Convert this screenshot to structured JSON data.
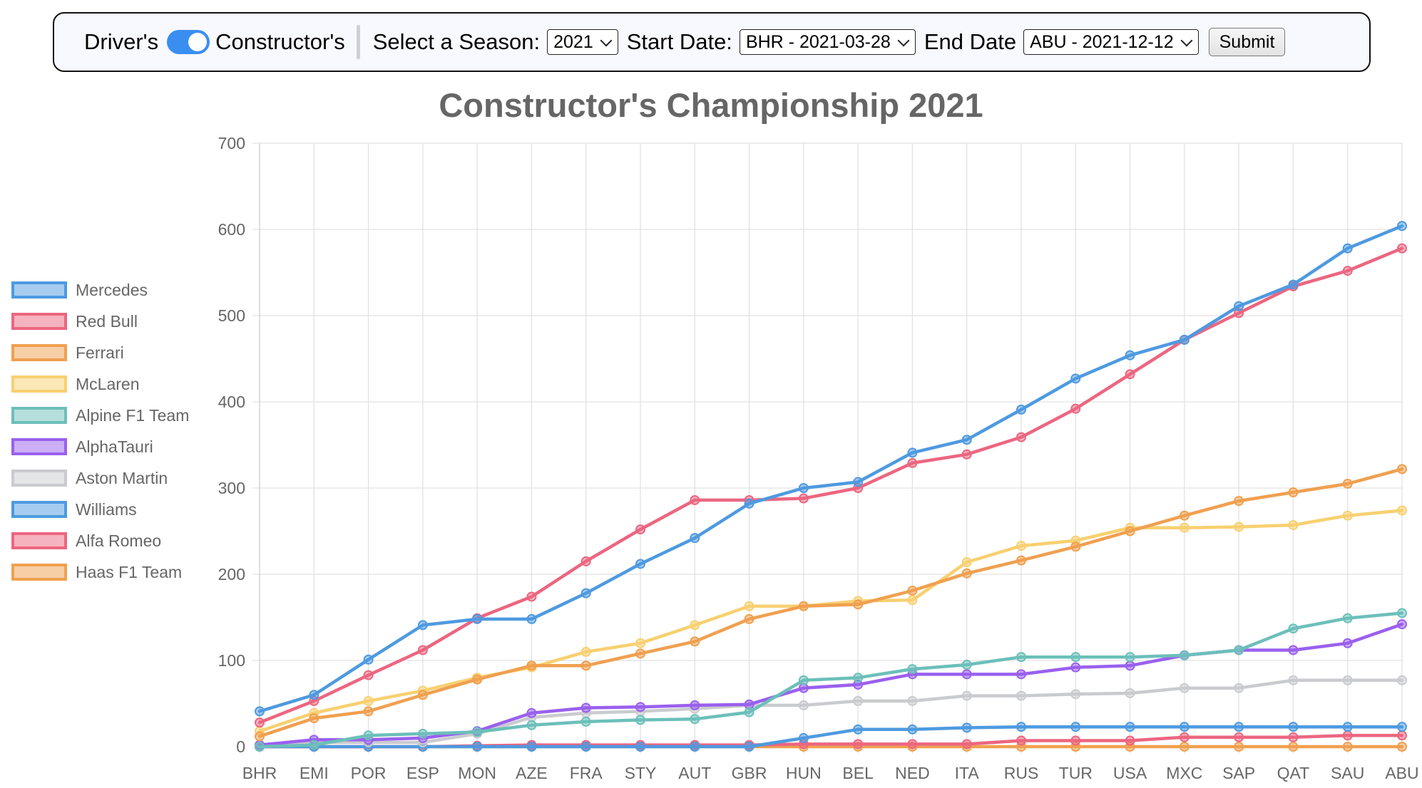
{
  "toolbar": {
    "driver_label": "Driver's",
    "constructor_label": "Constructor's",
    "toggle_state": "constructor",
    "season_label": "Select a Season:",
    "season_value": "2021",
    "start_label": "Start Date:",
    "start_value": "BHR - 2021-03-28",
    "end_label": "End Date",
    "end_value": "ABU - 2021-12-12",
    "submit_label": "Submit",
    "toggle_color": "#3a8ef0"
  },
  "chart_data": {
    "type": "line",
    "title": "Constructor's Championship 2021",
    "xlabel": "",
    "ylabel": "",
    "ylim": [
      0,
      700
    ],
    "yticks": [
      0,
      100,
      200,
      300,
      400,
      500,
      600,
      700
    ],
    "grid": true,
    "legend_position": "left",
    "categories": [
      "BHR",
      "EMI",
      "POR",
      "ESP",
      "MON",
      "AZE",
      "FRA",
      "STY",
      "AUT",
      "GBR",
      "HUN",
      "BEL",
      "NED",
      "ITA",
      "RUS",
      "TUR",
      "USA",
      "MXC",
      "SAP",
      "QAT",
      "SAU",
      "ABU"
    ],
    "series": [
      {
        "name": "Mercedes",
        "color": "#4e9ae0",
        "values": [
          41,
          60,
          101,
          141,
          148,
          148,
          178,
          212,
          242,
          282,
          300,
          307,
          341,
          356,
          391,
          427,
          454,
          472,
          511,
          536,
          578,
          604
        ]
      },
      {
        "name": "Red Bull",
        "color": "#ec6680",
        "values": [
          28,
          53,
          83,
          112,
          149,
          174,
          215,
          252,
          286,
          286,
          288,
          300,
          329,
          339,
          359,
          392,
          432,
          472,
          503,
          534,
          552,
          578
        ]
      },
      {
        "name": "Ferrari",
        "color": "#f0a050",
        "values": [
          12,
          33,
          41,
          60,
          78,
          94,
          94,
          108,
          122,
          148,
          163,
          165,
          181,
          201,
          216,
          232,
          250,
          268,
          285,
          295,
          305,
          322
        ]
      },
      {
        "name": "McLaren",
        "color": "#f8d070",
        "values": [
          18,
          39,
          53,
          65,
          80,
          92,
          110,
          120,
          141,
          163,
          163,
          169,
          170,
          214,
          233,
          239,
          254,
          254,
          255,
          257,
          268,
          274
        ]
      },
      {
        "name": "Alpine F1 Team",
        "color": "#6cbfba",
        "values": [
          0,
          2,
          13,
          15,
          17,
          25,
          29,
          31,
          32,
          40,
          77,
          80,
          90,
          95,
          104,
          104,
          104,
          106,
          112,
          137,
          149,
          155
        ]
      },
      {
        "name": "AlphaTauri",
        "color": "#9a60ee",
        "values": [
          2,
          8,
          8,
          10,
          18,
          39,
          45,
          46,
          48,
          49,
          68,
          72,
          84,
          84,
          84,
          92,
          94,
          106,
          112,
          112,
          120,
          142
        ]
      },
      {
        "name": "Aston Martin",
        "color": "#cacbcf",
        "values": [
          0,
          5,
          5,
          5,
          15,
          34,
          39,
          41,
          44,
          48,
          48,
          53,
          53,
          59,
          59,
          61,
          62,
          68,
          68,
          77,
          77,
          77
        ]
      },
      {
        "name": "Williams",
        "color": "#4e9ae0",
        "values": [
          0,
          0,
          0,
          0,
          0,
          0,
          0,
          0,
          0,
          0,
          10,
          20,
          20,
          22,
          23,
          23,
          23,
          23,
          23,
          23,
          23,
          23
        ]
      },
      {
        "name": "Alfa Romeo",
        "color": "#ec6680",
        "values": [
          0,
          0,
          0,
          0,
          1,
          2,
          2,
          2,
          2,
          2,
          3,
          3,
          3,
          3,
          7,
          7,
          7,
          11,
          11,
          11,
          13,
          13
        ]
      },
      {
        "name": "Haas F1 Team",
        "color": "#f0a050",
        "values": [
          0,
          0,
          0,
          0,
          0,
          0,
          0,
          0,
          0,
          0,
          0,
          0,
          0,
          0,
          0,
          0,
          0,
          0,
          0,
          0,
          0,
          0
        ]
      }
    ]
  }
}
